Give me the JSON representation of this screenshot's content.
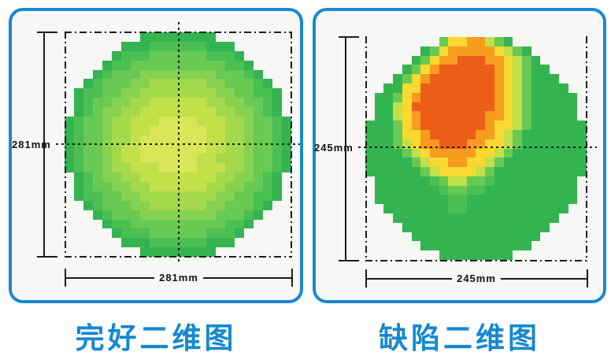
{
  "colors": {
    "accent_blue_border": "#1889d2",
    "caption_blue": "#1588d1",
    "panel_background": "#f7f7f5",
    "line_black": "#1c1c1c"
  },
  "chart_data": [
    {
      "type": "heatmap",
      "title": "完好二维图",
      "x_dimension_label": "281mm",
      "y_dimension_label": "281mm",
      "width_mm": 281,
      "height_mm": 281,
      "legend": "none",
      "crosshair": {
        "horizontal": true,
        "vertical": true
      },
      "frame_sides": [
        "top",
        "right",
        "bottom",
        "left"
      ],
      "grid_rows": 24,
      "grid_cols": 24,
      "empty_char": ".",
      "colormap": [
        "#33b450",
        "#4bbf53",
        "#68c953",
        "#86d150",
        "#a5d94c",
        "#c2e049",
        "#d9e657",
        "#f9d832",
        "#f69c1e",
        "#ec5d17"
      ],
      "cells": [
        "........00000000........",
        "......000111111000......",
        ".....01112222221110.....",
        "....0112222222222110....",
        "...012223333333322210...",
        "..01222334444443322210..",
        ".0112233444444443322110.",
        ".0122334455555544332210.",
        ".0123344555555554433210.",
        "012234455566665554432210",
        "012234455666666554432210",
        "012234456666666554432210",
        "012234556666666554432210",
        "012234556666665544432210",
        "012234455566665554432210",
        ".0123344555555554433210.",
        ".0122334455555544332210.",
        ".0112233444444443322110.",
        "..01222334444443322210..",
        "...012223333333322210...",
        "....0112222222222110....",
        ".....01112222221110.....",
        "......000111111000......",
        "........00000000........"
      ]
    },
    {
      "type": "heatmap",
      "title": "缺陷二维图",
      "x_dimension_label": "245mm",
      "y_dimension_label": "245mm",
      "width_mm": 245,
      "height_mm": 245,
      "legend": "none",
      "crosshair": {
        "horizontal": true,
        "vertical": false
      },
      "frame_sides": [
        "right",
        "bottom",
        "left"
      ],
      "grid_rows": 24,
      "grid_cols": 24,
      "empty_char": ".",
      "colormap": [
        "#33b450",
        "#4bbf53",
        "#68c953",
        "#86d150",
        "#a5d94c",
        "#c2e049",
        "#d9e657",
        "#f9d832",
        "#f69c1e",
        "#ec5d17"
      ],
      "cells": [
        "........27788520........",
        "......027888887520......",
        ".....02788999887520.....",
        "....0278999999875200....",
        "...027899999998752000...",
        "..00779999999987520000..",
        ".0027899999999875200000.",
        ".0057999999999875200000.",
        ".0057899999998875200000.",
        "000278999999987752000000",
        "000277899999887520000000",
        "000257889998877520000000",
        "000025788888775200000000",
        "000002577887752000000000",
        "000000257777520000000000",
        ".0000001255221000000000.",
        ".0000000122110000000000.",
        ".0000000011000000000000.",
        "..00000001100000000000..",
        "...000000000000000000...",
        "....0000000000000000....",
        ".....00000000000000.....",
        "......000000000000......",
        "........00000000........"
      ]
    }
  ]
}
